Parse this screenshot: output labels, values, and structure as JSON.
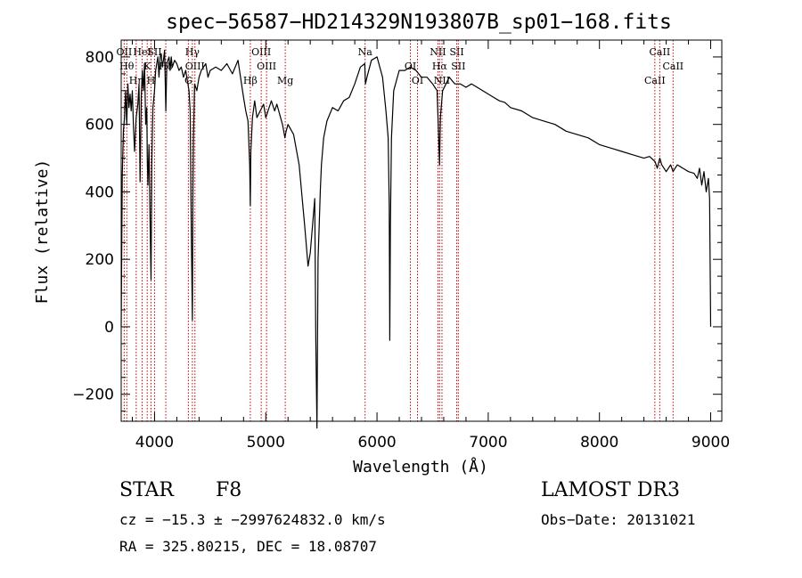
{
  "chart_data": {
    "type": "line",
    "title": "spec−56587−HD214329N193807B_sp01−168.fits",
    "xlabel": "Wavelength (Å)",
    "ylabel": "Flux (relative)",
    "xlim": [
      3700,
      9100
    ],
    "ylim": [
      -280,
      850
    ],
    "x_ticks": [
      4000,
      5000,
      6000,
      7000,
      8000,
      9000
    ],
    "y_ticks": [
      -200,
      0,
      200,
      400,
      600,
      800
    ],
    "series": [
      {
        "name": "flux",
        "x": [
          3700,
          3710,
          3720,
          3730,
          3740,
          3750,
          3760,
          3770,
          3780,
          3790,
          3800,
          3810,
          3820,
          3835,
          3850,
          3860,
          3870,
          3880,
          3890,
          3900,
          3910,
          3920,
          3930,
          3935,
          3940,
          3950,
          3960,
          3968,
          3975,
          3985,
          4000,
          4010,
          4020,
          4030,
          4040,
          4050,
          4060,
          4070,
          4080,
          4090,
          4101,
          4110,
          4120,
          4130,
          4140,
          4150,
          4160,
          4180,
          4200,
          4220,
          4240,
          4260,
          4280,
          4300,
          4310,
          4320,
          4330,
          4340,
          4345,
          4350,
          4360,
          4380,
          4400,
          4420,
          4440,
          4460,
          4480,
          4500,
          4550,
          4600,
          4650,
          4700,
          4750,
          4800,
          4820,
          4840,
          4855,
          4861,
          4866,
          4880,
          4900,
          4920,
          4950,
          4980,
          5000,
          5020,
          5050,
          5080,
          5100,
          5150,
          5167,
          5172,
          5183,
          5200,
          5250,
          5300,
          5350,
          5380,
          5400,
          5420,
          5440,
          5450,
          5460,
          5470,
          5480,
          5490,
          5500,
          5520,
          5550,
          5600,
          5650,
          5700,
          5750,
          5800,
          5850,
          5890,
          5896,
          5910,
          5950,
          6000,
          6050,
          6080,
          6100,
          6110,
          6115,
          6120,
          6130,
          6150,
          6200,
          6250,
          6300,
          6350,
          6400,
          6450,
          6500,
          6540,
          6555,
          6563,
          6570,
          6590,
          6620,
          6650,
          6700,
          6750,
          6800,
          6850,
          6900,
          6950,
          7000,
          7050,
          7100,
          7150,
          7200,
          7300,
          7400,
          7500,
          7600,
          7700,
          7800,
          7900,
          8000,
          8100,
          8200,
          8300,
          8400,
          8450,
          8500,
          8520,
          8542,
          8560,
          8600,
          8640,
          8662,
          8680,
          8700,
          8750,
          8800,
          8850,
          8880,
          8900,
          8920,
          8940,
          8960,
          8980,
          8990,
          9000
        ],
        "y": [
          0,
          450,
          580,
          620,
          700,
          600,
          720,
          650,
          690,
          640,
          700,
          600,
          520,
          620,
          660,
          720,
          430,
          680,
          760,
          700,
          780,
          600,
          650,
          500,
          420,
          540,
          300,
          140,
          480,
          650,
          700,
          760,
          780,
          800,
          740,
          800,
          810,
          770,
          790,
          820,
          640,
          780,
          790,
          800,
          760,
          800,
          770,
          790,
          780,
          760,
          770,
          740,
          760,
          720,
          700,
          640,
          300,
          20,
          400,
          560,
          720,
          700,
          740,
          760,
          770,
          780,
          740,
          760,
          770,
          760,
          780,
          750,
          790,
          680,
          640,
          610,
          480,
          360,
          520,
          620,
          670,
          620,
          640,
          660,
          620,
          640,
          670,
          640,
          660,
          600,
          570,
          560,
          580,
          600,
          570,
          480,
          300,
          180,
          220,
          300,
          380,
          -40,
          -300,
          200,
          300,
          400,
          480,
          560,
          610,
          650,
          640,
          670,
          680,
          720,
          770,
          780,
          720,
          740,
          790,
          800,
          740,
          640,
          560,
          360,
          -40,
          300,
          560,
          700,
          760,
          760,
          770,
          760,
          740,
          740,
          720,
          700,
          560,
          480,
          620,
          700,
          720,
          740,
          720,
          720,
          710,
          720,
          710,
          700,
          690,
          680,
          670,
          665,
          650,
          640,
          620,
          610,
          600,
          580,
          570,
          560,
          540,
          530,
          520,
          510,
          500,
          505,
          490,
          470,
          500,
          480,
          460,
          480,
          460,
          470,
          480,
          470,
          460,
          455,
          440,
          470,
          420,
          460,
          400,
          440,
          380,
          0
        ]
      }
    ],
    "line_markers": [
      {
        "x": 3727,
        "label": "OII"
      },
      {
        "x": 3750,
        "label": "Hθ"
      },
      {
        "x": 3835,
        "label": "Hη"
      },
      {
        "x": 3889,
        "label": "HeI"
      },
      {
        "x": 3934,
        "label": "K"
      },
      {
        "x": 3968,
        "label": "H"
      },
      {
        "x": 4000,
        "label": "SII"
      },
      {
        "x": 4101,
        "label": "Hδ"
      },
      {
        "x": 4304,
        "label": "G"
      },
      {
        "x": 4340,
        "label": "Hγ"
      },
      {
        "x": 4363,
        "label": "OIII"
      },
      {
        "x": 4861,
        "label": "Hβ"
      },
      {
        "x": 4959,
        "label": "OIII"
      },
      {
        "x": 5007,
        "label": "OIII"
      },
      {
        "x": 5175,
        "label": "Mg"
      },
      {
        "x": 5893,
        "label": "Na"
      },
      {
        "x": 6300,
        "label": "OI"
      },
      {
        "x": 6364,
        "label": "OI"
      },
      {
        "x": 6548,
        "label": "NII"
      },
      {
        "x": 6563,
        "label": "Hα"
      },
      {
        "x": 6584,
        "label": "NII"
      },
      {
        "x": 6717,
        "label": "SII"
      },
      {
        "x": 6731,
        "label": "SII"
      },
      {
        "x": 8498,
        "label": "CaII"
      },
      {
        "x": 8542,
        "label": "CaII"
      },
      {
        "x": 8662,
        "label": "CaII"
      }
    ]
  },
  "info": {
    "class_label": "STAR",
    "subclass": "F8",
    "survey": "LAMOST DR3",
    "cz": "cz = −15.3 ± −2997624832.0 km/s",
    "obs_date": "Obs−Date: 20131021",
    "radec": "RA = 325.80215, DEC =  18.08707"
  }
}
